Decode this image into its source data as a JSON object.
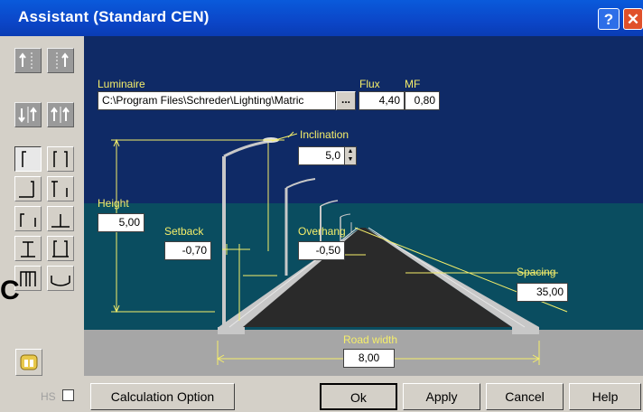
{
  "window": {
    "title": "Assistant (Standard CEN)",
    "help_glyph": "?",
    "close_glyph": "✕"
  },
  "luminaire": {
    "label": "Luminaire",
    "path": "C:\\Program Files\\Schreder\\Lighting\\Matric",
    "browse_label": "...",
    "flux_label": "Flux",
    "flux_value": "4,40",
    "mf_label": "MF",
    "mf_value": "0,80"
  },
  "params": {
    "inclination_label": "Inclination",
    "inclination_value": "5,0",
    "height_label": "Height",
    "height_value": "5,00",
    "setback_label": "Setback",
    "setback_value": "-0,70",
    "overhang_label": "Overhang",
    "overhang_value": "-0,50",
    "spacing_label": "Spacing",
    "spacing_value": "35,00",
    "road_width_label": "Road width",
    "road_width_value": "8,00"
  },
  "bottom": {
    "hs_label": "HS",
    "calc_option_label": "Calculation Option",
    "ok_label": "Ok",
    "apply_label": "Apply",
    "cancel_label": "Cancel",
    "help_label": "Help"
  },
  "stray_glyph": "C",
  "colors": {
    "title_bar": "#0b46c8",
    "sky": "#0f2a66",
    "grass": "#0a4d60",
    "road": "#2a2a2a",
    "dimension": "#f5ee6a"
  }
}
